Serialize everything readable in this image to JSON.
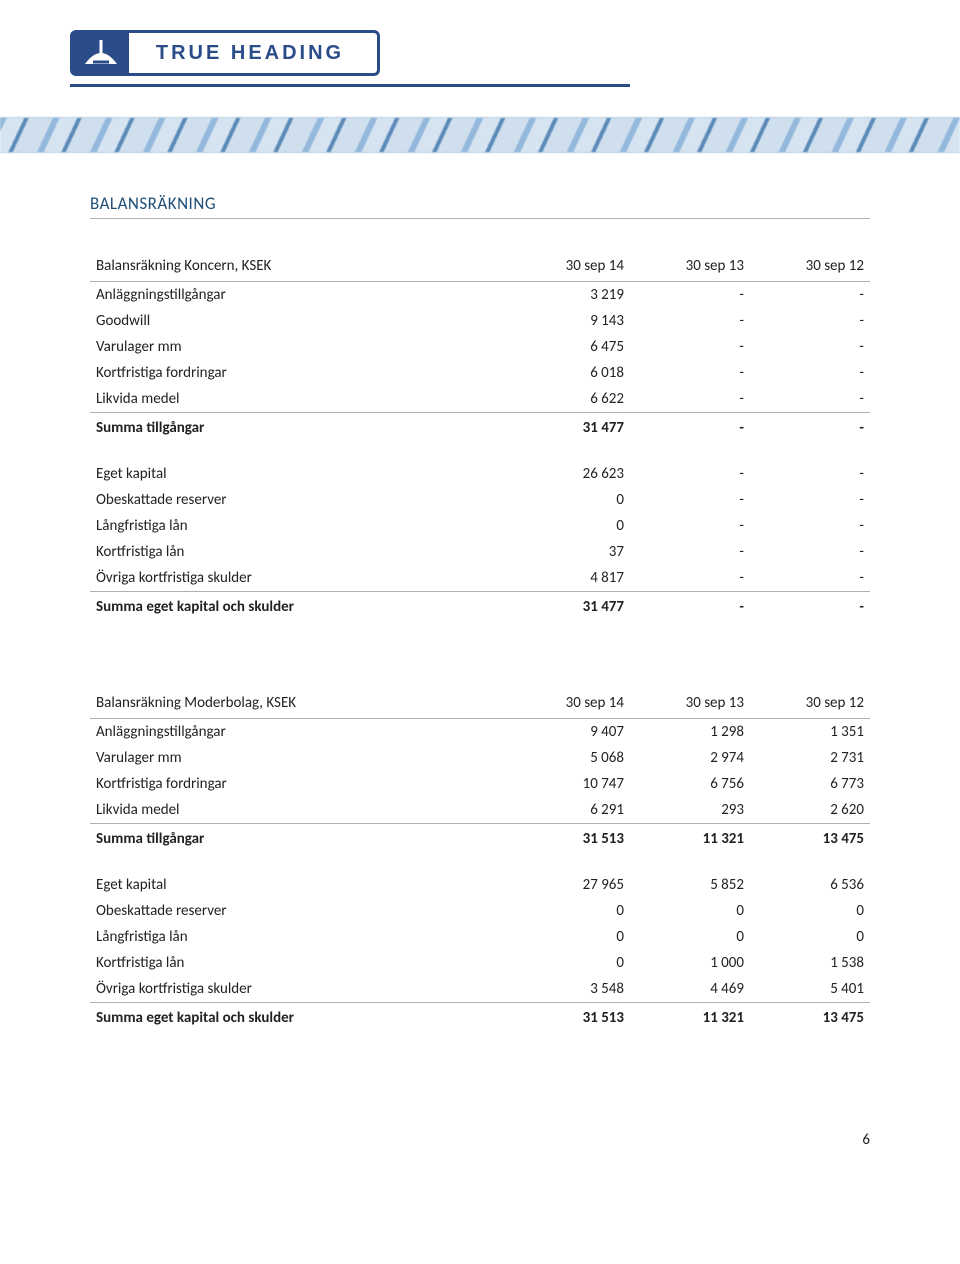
{
  "logo_text": "TRUE HEADING",
  "section_title": "BALANSRÄKNING",
  "table1": {
    "title": "Balansräkning Koncern, KSEK",
    "cols": [
      "30 sep 14",
      "30 sep 13",
      "30 sep 12"
    ],
    "rows_assets": [
      [
        "Anläggningstillgångar",
        "3 219",
        "-",
        "-"
      ],
      [
        "Goodwill",
        "9 143",
        "-",
        "-"
      ],
      [
        "Varulager mm",
        "6 475",
        "-",
        "-"
      ],
      [
        "Kortfristiga fordringar",
        "6 018",
        "-",
        "-"
      ],
      [
        "Likvida medel",
        "6 622",
        "-",
        "-"
      ]
    ],
    "total_assets": [
      "Summa tillgångar",
      "31 477",
      "-",
      "-"
    ],
    "rows_liab": [
      [
        "Eget kapital",
        "26 623",
        "-",
        "-"
      ],
      [
        "Obeskattade reserver",
        "0",
        "-",
        "-"
      ],
      [
        "Långfristiga lån",
        "0",
        "-",
        "-"
      ],
      [
        "Kortfristiga lån",
        "37",
        "-",
        "-"
      ],
      [
        "Övriga kortfristiga skulder",
        "4 817",
        "-",
        "-"
      ]
    ],
    "total_liab": [
      "Summa eget kapital och skulder",
      "31 477",
      "-",
      "-"
    ]
  },
  "table2": {
    "title": "Balansräkning Moderbolag, KSEK",
    "cols": [
      "30 sep 14",
      "30 sep 13",
      "30 sep 12"
    ],
    "rows_assets": [
      [
        "Anläggningstillgångar",
        "9 407",
        "1 298",
        "1 351"
      ],
      [
        "Varulager mm",
        "5 068",
        "2 974",
        "2 731"
      ],
      [
        "Kortfristiga fordringar",
        "10 747",
        "6 756",
        "6 773"
      ],
      [
        "Likvida medel",
        "6 291",
        "293",
        "2 620"
      ]
    ],
    "total_assets": [
      "Summa tillgångar",
      "31 513",
      "11 321",
      "13 475"
    ],
    "rows_liab": [
      [
        "Eget kapital",
        "27 965",
        "5 852",
        "6 536"
      ],
      [
        "Obeskattade reserver",
        "0",
        "0",
        "0"
      ],
      [
        "Långfristiga lån",
        "0",
        "0",
        "0"
      ],
      [
        "Kortfristiga lån",
        "0",
        "1 000",
        "1 538"
      ],
      [
        "Övriga kortfristiga skulder",
        "3 548",
        "4 469",
        "5 401"
      ]
    ],
    "total_liab": [
      "Summa eget kapital och skulder",
      "31 513",
      "11 321",
      "13 475"
    ]
  },
  "page_num": "6"
}
